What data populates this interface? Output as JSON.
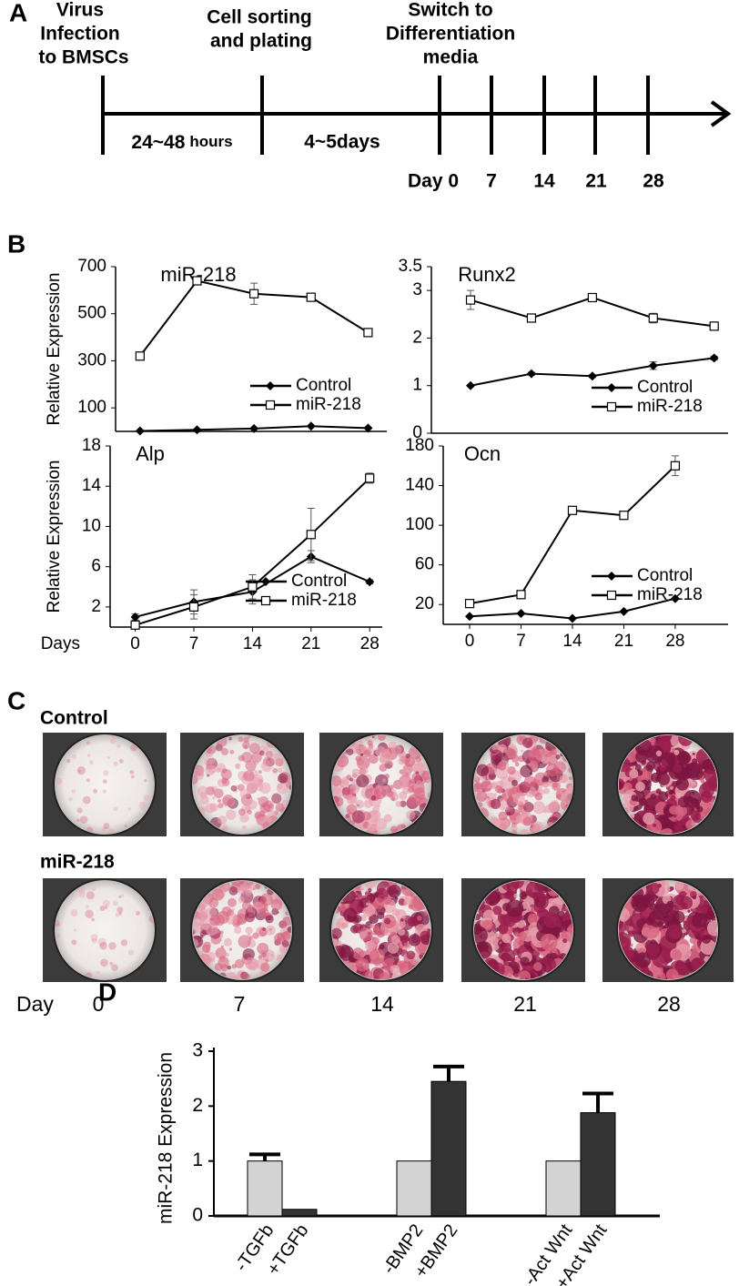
{
  "panel_labels": [
    "A",
    "B",
    "C",
    "D"
  ],
  "timeline": {
    "steps": [
      [
        "Virus",
        "Infection",
        "to BMSCs"
      ],
      [
        "Cell sorting",
        "and plating"
      ],
      [
        "Switch to",
        "Differentiation",
        "media"
      ]
    ],
    "intervals": [
      {
        "text": "24~48",
        "unit": "hours"
      },
      {
        "text": "4~5days"
      }
    ],
    "day_labels": [
      "Day 0",
      "7",
      "14",
      "21",
      "28"
    ]
  },
  "chart_data": [
    {
      "type": "line",
      "title": "miR-218",
      "ylabel": "Relative Expression",
      "x": [
        0,
        7,
        14,
        21,
        28
      ],
      "xlim": [
        -3,
        30.3
      ],
      "ylim": [
        0,
        700
      ],
      "yticks": [
        100,
        300,
        500,
        700
      ],
      "legend": "lower right",
      "series": [
        {
          "name": "Control",
          "color": "#000000",
          "marker": "diamond",
          "values": [
            2,
            7,
            12,
            22,
            14
          ]
        },
        {
          "name": "miR-218",
          "color": "#000000",
          "marker": "open-square",
          "values": [
            320,
            640,
            585,
            570,
            420
          ],
          "errors": [
            10,
            8,
            45,
            10,
            8
          ]
        }
      ]
    },
    {
      "type": "line",
      "title": "Runx2",
      "x": [
        0,
        7,
        14,
        21,
        28
      ],
      "xlim": [
        -4.5,
        29.6
      ],
      "ylim": [
        0,
        3.5
      ],
      "yticks": [
        0,
        1,
        2,
        3,
        3.5
      ],
      "legend": "lower right",
      "series": [
        {
          "name": "Control",
          "color": "#000000",
          "marker": "diamond",
          "values": [
            1.0,
            1.25,
            1.2,
            1.42,
            1.58
          ],
          "errors": [
            0.02,
            0.03,
            0.03,
            0.08,
            0.04
          ]
        },
        {
          "name": "miR-218",
          "color": "#000000",
          "marker": "open-square",
          "values": [
            2.8,
            2.42,
            2.85,
            2.42,
            2.25
          ],
          "errors": [
            0.2,
            0.05,
            0.05,
            0.1,
            0.05
          ]
        }
      ]
    },
    {
      "type": "line",
      "title": "Alp",
      "ylabel": "Relative Expression",
      "xlabel": "Days",
      "x": [
        0,
        7,
        14,
        21,
        28
      ],
      "xlim": [
        -3,
        29.5
      ],
      "xticks": [
        0,
        7,
        14,
        21,
        28
      ],
      "ylim": [
        0,
        18
      ],
      "yticks": [
        2,
        6,
        10,
        14,
        18
      ],
      "legend": "lower right",
      "series": [
        {
          "name": "Control",
          "color": "#000000",
          "marker": "diamond",
          "values": [
            1.0,
            2.5,
            3.5,
            7.0,
            4.5
          ],
          "errors": [
            0.3,
            1.2,
            1.2,
            0.6,
            0.2
          ]
        },
        {
          "name": "miR-218",
          "color": "#000000",
          "marker": "open-square",
          "values": [
            0.2,
            2.0,
            4.0,
            9.2,
            14.8
          ],
          "errors": [
            0.3,
            1.2,
            1.2,
            2.6,
            0.5
          ]
        }
      ]
    },
    {
      "type": "line",
      "title": "Ocn",
      "x": [
        0,
        7,
        14,
        21,
        28
      ],
      "xlim": [
        -3.6,
        35.2
      ],
      "xticks": [
        0,
        7,
        14,
        21,
        28
      ],
      "ylim": [
        0,
        180
      ],
      "yticks": [
        20,
        60,
        100,
        140,
        180
      ],
      "legend": "center right",
      "series": [
        {
          "name": "Control",
          "color": "#000000",
          "marker": "diamond",
          "values": [
            8,
            11,
            6,
            13,
            26
          ]
        },
        {
          "name": "miR-218",
          "color": "#000000",
          "marker": "open-square",
          "values": [
            21,
            30,
            115,
            110,
            160
          ],
          "errors": [
            2,
            2,
            2,
            4,
            10
          ]
        }
      ]
    },
    {
      "type": "bar",
      "ylabel": "miR-218 Expression",
      "categories": [
        "-TGFb",
        "+TGFb",
        "-BMP2",
        "+BMP2",
        "-Act Wnt",
        "+Act Wnt"
      ],
      "values": [
        1.0,
        0.12,
        1.0,
        2.45,
        1.0,
        1.88
      ],
      "errors": [
        0.12,
        null,
        null,
        0.27,
        null,
        0.35
      ],
      "colors": [
        "#d3d3d3",
        "#333333",
        "#d3d3d3",
        "#333333",
        "#d3d3d3",
        "#333333"
      ],
      "ylim": [
        0,
        3
      ],
      "yticks": [
        0,
        1,
        2,
        3
      ]
    }
  ],
  "staining": {
    "rows": [
      "Control",
      "miR-218"
    ],
    "day_label": "Day",
    "days": [
      "0",
      "7",
      "14",
      "21",
      "28"
    ]
  }
}
